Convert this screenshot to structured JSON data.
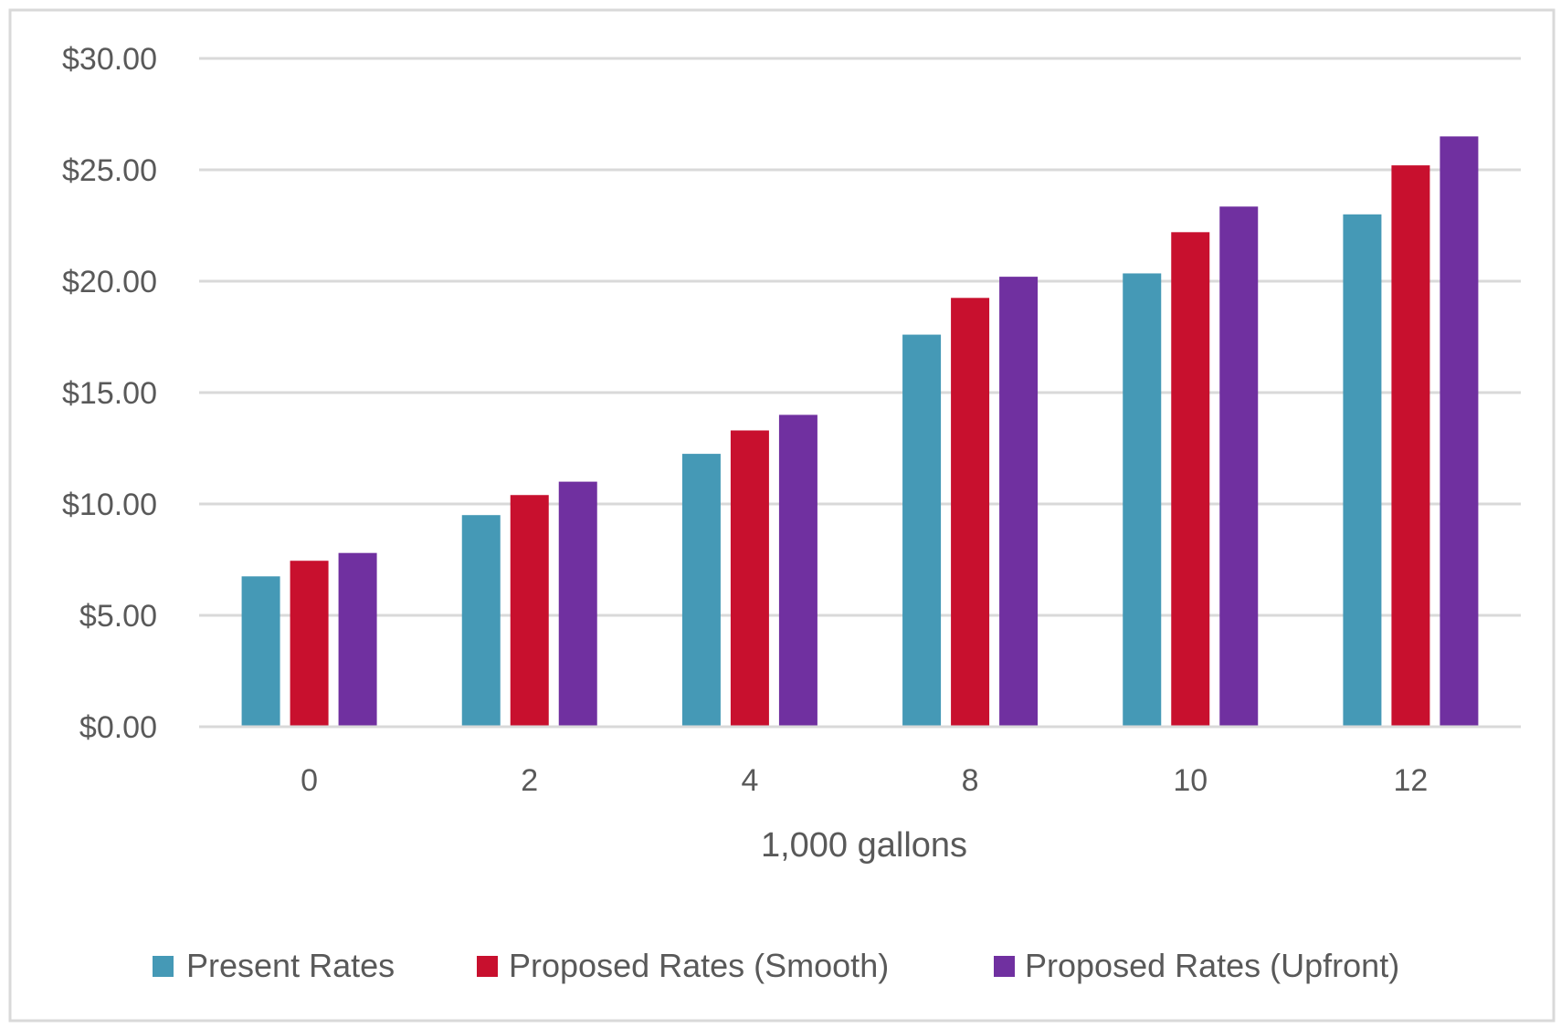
{
  "chart_data": {
    "type": "bar",
    "title": "",
    "xlabel": "1,000 gallons",
    "ylabel": "",
    "categories": [
      "0",
      "2",
      "4",
      "8",
      "10",
      "12"
    ],
    "yticks": [
      "$0.00",
      "$5.00",
      "$10.00",
      "$15.00",
      "$20.00",
      "$25.00",
      "$30.00"
    ],
    "ylim": [
      0,
      30
    ],
    "grid": true,
    "legend_position": "bottom",
    "series": [
      {
        "name": "Present Rates",
        "color": "#4599B6",
        "values": [
          6.75,
          9.5,
          12.25,
          17.6,
          20.35,
          23.0
        ]
      },
      {
        "name": "Proposed Rates (Smooth)",
        "color": "#C8102E",
        "values": [
          7.45,
          10.4,
          13.3,
          19.25,
          22.2,
          25.2
        ]
      },
      {
        "name": "Proposed Rates (Upfront)",
        "color": "#7030A0",
        "values": [
          7.8,
          11.0,
          14.0,
          20.2,
          23.35,
          26.5
        ]
      }
    ]
  }
}
